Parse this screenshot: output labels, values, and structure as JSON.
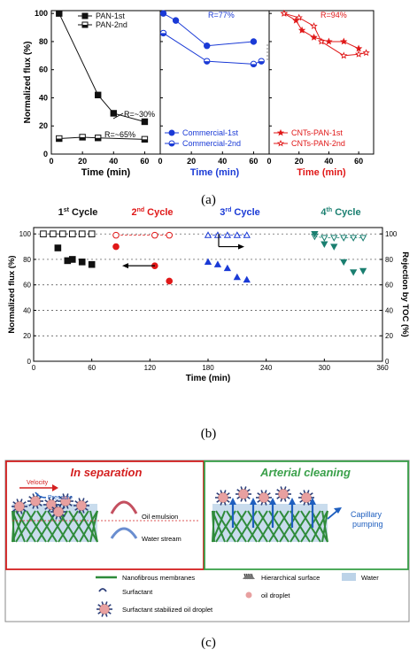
{
  "captions": {
    "a": "(a)",
    "b": "(b)",
    "c": "(c)"
  },
  "colors": {
    "black": "#111111",
    "blue": "#1a3ad6",
    "red": "#e01818",
    "green": "#1a7f70",
    "membrane_green": "#2e8b3a",
    "box_red": "#d42020",
    "box_green": "#3aa04a",
    "water": "#bcd3e8",
    "droplet": "#e8a0a0"
  },
  "chart_data": [
    {
      "type": "line",
      "panel": "a-left",
      "ylabel": "Normalized flux (%)",
      "xlabel": "Time (min)",
      "xlim": [
        0,
        70
      ],
      "ylim": [
        0,
        102
      ],
      "xticks": [
        "0",
        "20",
        "40",
        "60"
      ],
      "yticks": [
        "0",
        "20",
        "40",
        "60",
        "80",
        "100"
      ],
      "series": [
        {
          "name": "PAN-1st",
          "x": [
            5,
            30,
            40,
            60
          ],
          "y": [
            100,
            42,
            29,
            23
          ],
          "marker": "filled-square"
        },
        {
          "name": "PAN-2nd",
          "x": [
            5,
            20,
            30,
            60
          ],
          "y": [
            11,
            12,
            11.5,
            10.5
          ],
          "marker": "half-square"
        }
      ],
      "annotations": [
        "R=~30%",
        "R=~65%"
      ]
    },
    {
      "type": "line",
      "panel": "a-middle",
      "xlabel": "Time (min)",
      "xlim": [
        0,
        70
      ],
      "ylim": [
        0,
        102
      ],
      "xticks": [
        "0",
        "20",
        "40",
        "60"
      ],
      "series": [
        {
          "name": "Commercial-1st",
          "x": [
            2,
            10,
            30,
            60
          ],
          "y": [
            100,
            95,
            77,
            80
          ],
          "marker": "filled-circle"
        },
        {
          "name": "Commercial-2nd",
          "x": [
            2,
            30,
            60,
            65
          ],
          "y": [
            86,
            66,
            64,
            66
          ],
          "marker": "half-circle"
        }
      ],
      "annotations": [
        "R=77%"
      ]
    },
    {
      "type": "line",
      "panel": "a-right",
      "xlabel": "Time (min)",
      "xlim": [
        0,
        70
      ],
      "ylim": [
        0,
        102
      ],
      "xticks": [
        "0",
        "20",
        "40",
        "60"
      ],
      "series": [
        {
          "name": "CNTs-PAN-1st",
          "x": [
            10,
            18,
            22,
            30,
            40,
            50,
            60
          ],
          "y": [
            100,
            95,
            88,
            83,
            80,
            80,
            75
          ],
          "marker": "filled-star"
        },
        {
          "name": "CNTs-PAN-2nd",
          "x": [
            10,
            20,
            30,
            35,
            50,
            60,
            65
          ],
          "y": [
            100,
            97,
            91,
            80,
            70,
            71,
            72
          ],
          "marker": "open-star"
        }
      ],
      "annotations": [
        "R=94%"
      ]
    },
    {
      "type": "scatter",
      "panel": "b",
      "xlabel": "Time (min)",
      "ylabel": "Normalized flux (%)",
      "ylabel_right": "Rejection by TOC (%)",
      "xlim": [
        0,
        360
      ],
      "ylim": [
        0,
        105
      ],
      "xticks": [
        "0",
        "60",
        "120",
        "180",
        "240",
        "300",
        "360"
      ],
      "yticks": [
        "0",
        "20",
        "40",
        "60",
        "80",
        "100"
      ],
      "yticks_right": [
        "0",
        "20",
        "40",
        "60",
        "80",
        "100"
      ],
      "cycles": [
        {
          "label": "1",
          "sup": "st",
          "suffix": " Cycle",
          "color": "#111111",
          "flux": {
            "x": [
              25,
              35,
              40,
              50,
              60
            ],
            "y": [
              89,
              79,
              80,
              78,
              76
            ],
            "marker": "square"
          },
          "rejection": {
            "x": [
              10,
              20,
              30,
              40,
              50,
              60
            ],
            "y": [
              100,
              100,
              100,
              100,
              100,
              100
            ],
            "marker": "open-square"
          }
        },
        {
          "label": "2",
          "sup": "nd",
          "suffix": " Cycle",
          "color": "#e01818",
          "flux": {
            "x": [
              85,
              125,
              140
            ],
            "y": [
              90,
              75,
              63
            ],
            "marker": "circle"
          },
          "rejection": {
            "x": [
              85,
              125,
              140
            ],
            "y": [
              99,
              99,
              99
            ],
            "marker": "open-circle"
          }
        },
        {
          "label": "3",
          "sup": "rd",
          "suffix": " Cycle",
          "color": "#1a3ad6",
          "flux": {
            "x": [
              180,
              190,
              200,
              210,
              220
            ],
            "y": [
              78,
              76,
              73,
              66,
              64
            ],
            "marker": "triangle"
          },
          "rejection": {
            "x": [
              180,
              190,
              200,
              210,
              220
            ],
            "y": [
              99,
              99,
              99,
              99,
              99
            ],
            "marker": "open-triangle"
          }
        },
        {
          "label": "4",
          "sup": "th",
          "suffix": " Cycle",
          "color": "#1a7f70",
          "flux": {
            "x": [
              290,
              300,
              310,
              320,
              330,
              340
            ],
            "y": [
              100,
              92,
              90,
              78,
              70,
              71
            ],
            "marker": "down-triangle"
          },
          "rejection": {
            "x": [
              290,
              300,
              310,
              320,
              330,
              340
            ],
            "y": [
              98,
              97,
              97,
              97,
              97,
              97
            ],
            "marker": "open-down-triangle"
          }
        }
      ]
    }
  ],
  "schematic": {
    "left_title": "In separation",
    "right_title": "Arterial cleaning",
    "labels": {
      "velocity": "Velocity",
      "pressure": "Pressure",
      "oil_emulsion": "Oil emulsion",
      "water_stream": "Water stream",
      "capillary_1": "Capillary",
      "capillary_2": "pumping"
    },
    "legend": [
      {
        "key": "membrane",
        "text": "Nanofibrous membranes"
      },
      {
        "key": "hierarchical",
        "text": "Hierarchical surface"
      },
      {
        "key": "water",
        "text": "Water"
      },
      {
        "key": "surfactant",
        "text": "Surfactant"
      },
      {
        "key": "droplet",
        "text": "oil droplet"
      },
      {
        "key": "stabilized",
        "text": "Surfactant stabilized oil droplet"
      }
    ]
  }
}
